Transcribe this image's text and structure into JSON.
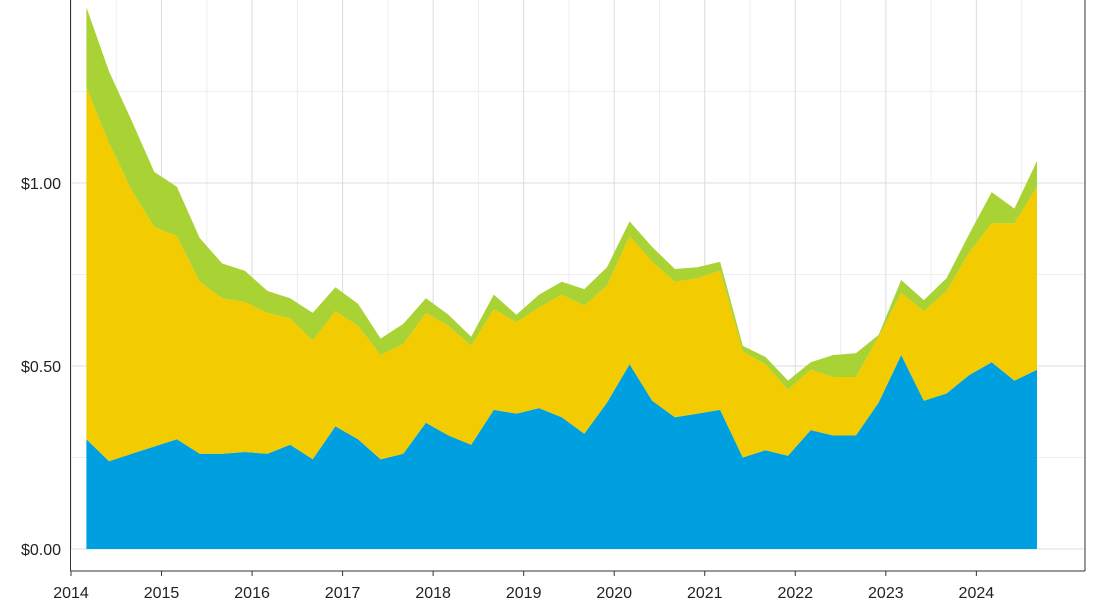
{
  "chart_data": {
    "type": "area",
    "stacked": true,
    "grid": true,
    "legend": "none",
    "xlim": [
      2014.0,
      2025.2
    ],
    "ylim": [
      0.0,
      1.5
    ],
    "x_ticks": [
      2014,
      2015,
      2016,
      2017,
      2018,
      2019,
      2020,
      2021,
      2022,
      2023,
      2024
    ],
    "x_tick_labels": [
      "2014",
      "2015",
      "2016",
      "2017",
      "2018",
      "2019",
      "2020",
      "2021",
      "2022",
      "2023",
      "2024"
    ],
    "y_ticks": [
      0.0,
      0.5,
      1.0
    ],
    "y_tick_labels": [
      "$0.00",
      "$0.50",
      "$1.00"
    ],
    "x": [
      2014.17,
      2014.42,
      2014.67,
      2014.92,
      2015.17,
      2015.42,
      2015.67,
      2015.92,
      2016.17,
      2016.42,
      2016.67,
      2016.92,
      2017.17,
      2017.42,
      2017.67,
      2017.92,
      2018.17,
      2018.42,
      2018.67,
      2018.92,
      2019.17,
      2019.42,
      2019.67,
      2019.92,
      2020.17,
      2020.42,
      2020.67,
      2020.92,
      2021.17,
      2021.42,
      2021.67,
      2021.92,
      2022.17,
      2022.42,
      2022.67,
      2022.92,
      2023.17,
      2023.42,
      2023.67,
      2023.92,
      2024.17,
      2024.42,
      2024.67
    ],
    "series": [
      {
        "color": "#009fdf",
        "values": [
          0.3,
          0.24,
          0.26,
          0.28,
          0.3,
          0.26,
          0.26,
          0.265,
          0.26,
          0.285,
          0.245,
          0.335,
          0.3,
          0.245,
          0.26,
          0.345,
          0.31,
          0.285,
          0.38,
          0.37,
          0.385,
          0.36,
          0.315,
          0.4,
          0.505,
          0.405,
          0.36,
          0.37,
          0.38,
          0.25,
          0.27,
          0.255,
          0.325,
          0.31,
          0.31,
          0.4,
          0.53,
          0.405,
          0.425,
          0.475,
          0.51,
          0.46,
          0.49
        ]
      },
      {
        "color": "#f2cb00",
        "values": [
          0.96,
          0.87,
          0.72,
          0.6,
          0.555,
          0.47,
          0.425,
          0.41,
          0.385,
          0.345,
          0.325,
          0.315,
          0.31,
          0.285,
          0.3,
          0.3,
          0.3,
          0.27,
          0.275,
          0.25,
          0.275,
          0.335,
          0.35,
          0.32,
          0.35,
          0.38,
          0.37,
          0.37,
          0.38,
          0.29,
          0.235,
          0.18,
          0.165,
          0.16,
          0.16,
          0.18,
          0.17,
          0.245,
          0.28,
          0.335,
          0.38,
          0.43,
          0.5
        ]
      },
      {
        "color": "#a9d234",
        "values": [
          0.22,
          0.195,
          0.19,
          0.15,
          0.135,
          0.12,
          0.095,
          0.085,
          0.06,
          0.055,
          0.075,
          0.065,
          0.06,
          0.045,
          0.055,
          0.04,
          0.03,
          0.025,
          0.04,
          0.02,
          0.035,
          0.035,
          0.045,
          0.05,
          0.04,
          0.04,
          0.035,
          0.03,
          0.025,
          0.015,
          0.02,
          0.025,
          0.02,
          0.06,
          0.065,
          0.005,
          0.035,
          0.03,
          0.035,
          0.05,
          0.085,
          0.04,
          0.07
        ]
      }
    ]
  }
}
